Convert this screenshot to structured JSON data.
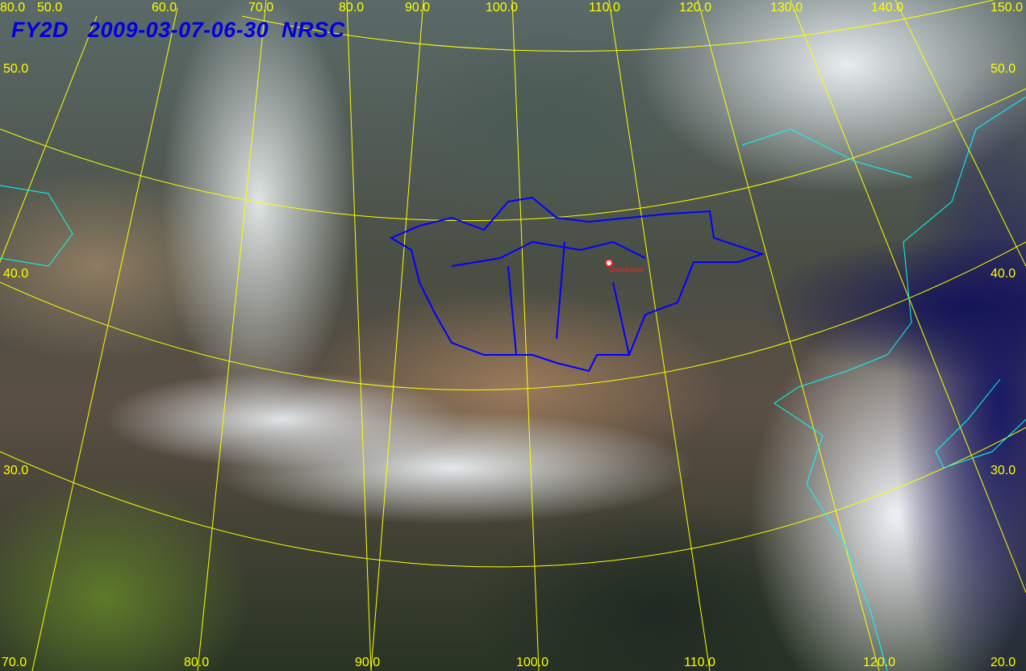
{
  "title": "FY2D   2009-03-07-06-30  NRSC",
  "city": "Ulaanbaatar",
  "colors": {
    "graticule": "#ffff00",
    "coastline": "#00ffff",
    "boundary": "#0000ff",
    "title": "#0000e0",
    "city": "#ff2020"
  },
  "labels": {
    "top": [
      "80.0",
      "50.0",
      "60.0",
      "70.0",
      "80.0",
      "90.0",
      "100.0",
      "110.0",
      "120.0",
      "130.0",
      "140.0",
      "150.0"
    ],
    "left": [
      "50.0",
      "40.0",
      "30.0",
      "70.0"
    ],
    "right": [
      "50.0",
      "40.0",
      "30.0",
      "20.0"
    ],
    "bottom": [
      "80.0",
      "90.0",
      "100.0",
      "110.0",
      "120.0"
    ]
  }
}
